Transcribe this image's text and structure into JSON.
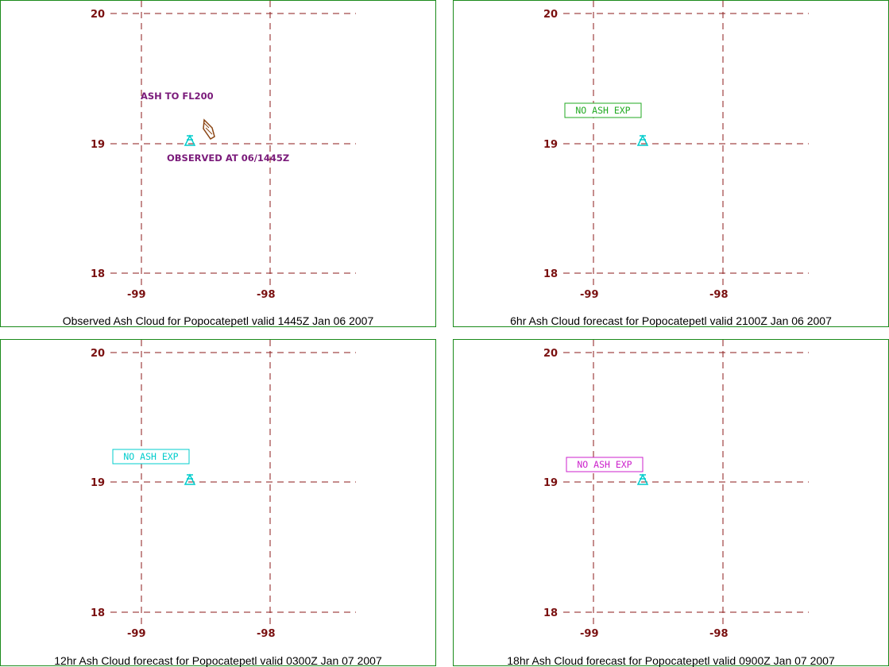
{
  "colors": {
    "panel_border": "#1a8a1a",
    "grid": "#8b1a1a",
    "tick_label": "#7a1010",
    "volcano": "#00cccc",
    "ash_cloud": "#8b4513",
    "observed_label": "#7a1a7a"
  },
  "volcano": {
    "name": "Popocatepetl",
    "lon": -98.62,
    "lat": 19.02,
    "icon": "volcano-triangle-icon"
  },
  "axes": {
    "lat_ticks": [
      "20",
      "19",
      "18"
    ],
    "lon_ticks": [
      "-99",
      "-98"
    ],
    "lat_range": [
      18,
      20
    ],
    "lon_range": [
      -99.25,
      -97.35
    ]
  },
  "panels": [
    {
      "id": "observed",
      "title": "Observed Ash Cloud for Popocatepetl valid 1445Z Jan 06 2007",
      "ash_top_label": "ASH TO FL200",
      "observed_label": "OBSERVED AT 06/1445Z",
      "ash_polygon_lonlat": [
        [
          -98.55,
          19.18
        ],
        [
          -98.49,
          19.12
        ],
        [
          -98.45,
          19.05
        ],
        [
          -98.48,
          19.03
        ],
        [
          -98.55,
          19.11
        ]
      ]
    },
    {
      "id": "fcst-6hr",
      "title": "6hr Ash Cloud forecast for Popocatepetl valid 2100Z Jan 06 2007",
      "no_ash_label": "NO ASH EXP",
      "no_ash_color": "#22aa22"
    },
    {
      "id": "fcst-12hr",
      "title": "12hr Ash Cloud forecast for Popocatepetl valid 0300Z Jan 07 2007",
      "no_ash_label": "NO ASH EXP",
      "no_ash_color": "#00cccc"
    },
    {
      "id": "fcst-18hr",
      "title": "18hr Ash Cloud forecast for Popocatepetl valid 0900Z Jan 07 2007",
      "no_ash_label": "NO ASH EXP",
      "no_ash_color": "#cc22cc"
    }
  ]
}
